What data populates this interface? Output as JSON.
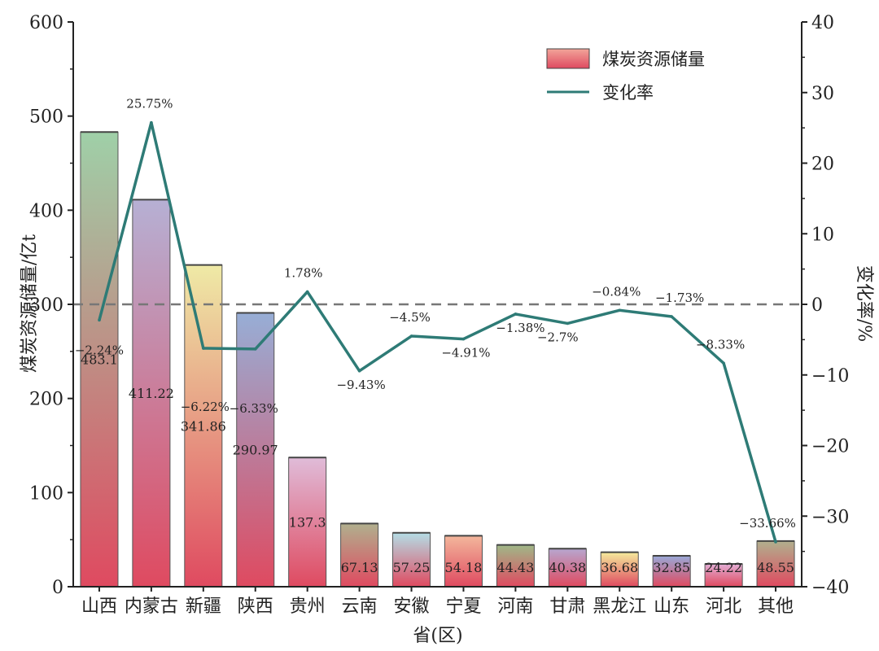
{
  "chart_data": {
    "type": "bar",
    "xlabel": "省(区)",
    "ylabel": "煤炭资源储量/亿t",
    "y2label": "变化率/%",
    "categories": [
      "山西",
      "内蒙古",
      "新疆",
      "陕西",
      "贵州",
      "云南",
      "安徽",
      "宁夏",
      "河南",
      "甘肃",
      "黑龙江",
      "山东",
      "河北",
      "其他"
    ],
    "ylim": [
      0,
      600
    ],
    "y_ticks": [
      "0",
      "100",
      "200",
      "300",
      "400",
      "500",
      "600"
    ],
    "y2lim": [
      -40,
      40
    ],
    "y2_ticks": [
      "−40",
      "−30",
      "−20",
      "−10",
      "0",
      "10",
      "20",
      "30",
      "40"
    ],
    "reference_line": {
      "y2": 0,
      "style": "dashed"
    },
    "legend": {
      "position": "top-right"
    },
    "series": [
      {
        "name": "煤炭资源储量",
        "type": "bar",
        "axis": "left",
        "values": [
          483.1,
          411.22,
          341.86,
          290.97,
          137.3,
          67.13,
          57.25,
          54.18,
          44.43,
          40.38,
          36.68,
          32.85,
          24.22,
          48.55
        ],
        "labels": [
          "483.1",
          "411.22",
          "341.86",
          "290.97",
          "137.3",
          "67.13",
          "57.25",
          "54.18",
          "44.43",
          "40.38",
          "36.68",
          "32.85",
          "24.22",
          "48.55"
        ],
        "top_colors": [
          "#9fd0a8",
          "#b6b0d4",
          "#efeaa6",
          "#97aed6",
          "#e0bcd9",
          "#b0b08e",
          "#b4dde6",
          "#f3b79c",
          "#9fb888",
          "#b7a6cf",
          "#f5eb9c",
          "#99a9d8",
          "#e3aed6",
          "#b0b08e"
        ],
        "bottom_color": "#df4a60"
      },
      {
        "name": "变化率",
        "type": "line",
        "axis": "right",
        "color": "#2e7b76",
        "values": [
          -2.24,
          25.75,
          -6.22,
          -6.33,
          1.78,
          -9.43,
          -4.5,
          -4.91,
          -1.38,
          -2.7,
          -0.84,
          -1.73,
          -8.33,
          -33.66
        ],
        "labels": [
          "−2.24%",
          "25.75%",
          "−6.22%",
          "−6.33%",
          "1.78%",
          "−9.43%",
          "−4.5%",
          "−4.91%",
          "−1.38%",
          "−2.7%",
          "−0.84%",
          "−1.73%",
          "−8.33%",
          "−33.66%"
        ]
      }
    ]
  }
}
